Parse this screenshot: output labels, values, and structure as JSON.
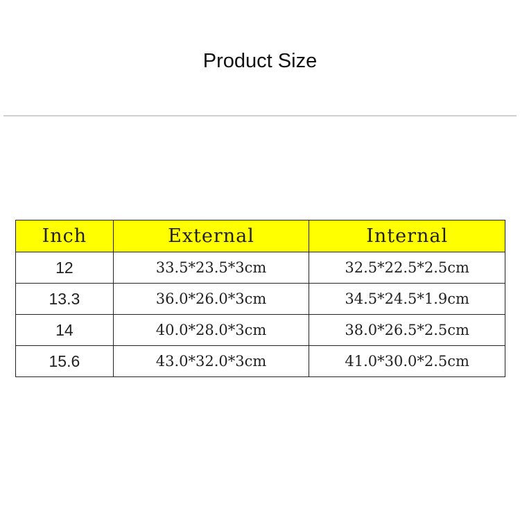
{
  "title": "Product Size",
  "table": {
    "headers": [
      "Inch",
      "External",
      "Internal"
    ],
    "rows": [
      [
        "12",
        "33.5*23.5*3cm",
        "32.5*22.5*2.5cm"
      ],
      [
        "13.3",
        "36.0*26.0*3cm",
        "34.5*24.5*1.9cm"
      ],
      [
        "14",
        "40.0*28.0*3cm",
        "38.0*26.5*2.5cm"
      ],
      [
        "15.6",
        "43.0*32.0*3cm",
        "41.0*30.0*2.5cm"
      ]
    ],
    "header_color": "#ffff00"
  }
}
